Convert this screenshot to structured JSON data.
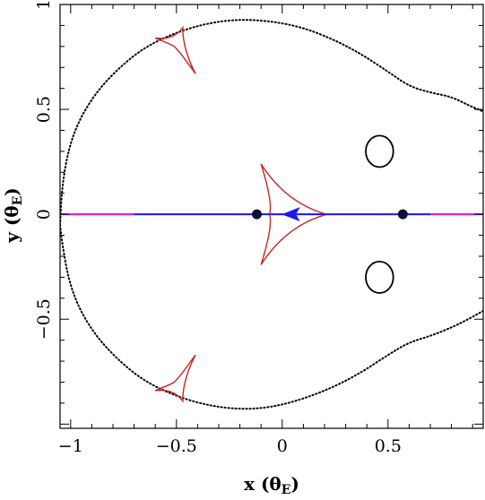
{
  "chart_data": {
    "type": "scatter",
    "xlabel": "x (θ",
    "xlabel_sub": "E",
    "xlabel_end": ")",
    "ylabel": "y (θ",
    "ylabel_sub": "E",
    "ylabel_end": ")",
    "xlim": [
      -1.05,
      0.95
    ],
    "ylim": [
      -1.02,
      1.0
    ],
    "x_ticks": [
      {
        "value": -1,
        "label": "−1"
      },
      {
        "value": -0.5,
        "label": "−0.5"
      },
      {
        "value": 0,
        "label": "0"
      },
      {
        "value": 0.5,
        "label": "0.5"
      }
    ],
    "y_ticks": [
      {
        "value": -0.5,
        "label": "−0.5"
      },
      {
        "value": 0,
        "label": "0"
      },
      {
        "value": 0.5,
        "label": "0.5"
      },
      {
        "value": 1,
        "label": "1"
      }
    ],
    "grid": false,
    "legend": "none",
    "colors": {
      "critical_curve": "#000000",
      "caustic": "#cc2222",
      "source_track": "#1a1aee",
      "source_line": "#dd22dd",
      "lens": "#101030"
    },
    "critical_curves": {
      "outer": [
        [
          -1.05,
          -0.05
        ],
        [
          -1.04,
          0.14
        ],
        [
          -1.01,
          0.31
        ],
        [
          -0.96,
          0.45
        ],
        [
          -0.88,
          0.58
        ],
        [
          -0.78,
          0.69
        ],
        [
          -0.66,
          0.79
        ],
        [
          -0.52,
          0.86
        ],
        [
          -0.36,
          0.91
        ],
        [
          -0.2,
          0.93
        ],
        [
          -0.05,
          0.92
        ],
        [
          0.1,
          0.89
        ],
        [
          0.25,
          0.83
        ],
        [
          0.38,
          0.76
        ],
        [
          0.5,
          0.68
        ],
        [
          0.6,
          0.61
        ],
        [
          0.7,
          0.58
        ],
        [
          0.8,
          0.56
        ],
        [
          0.88,
          0.52
        ],
        [
          0.95,
          0.49
        ]
      ],
      "outer_lower": [
        [
          0.95,
          -0.46
        ],
        [
          0.88,
          -0.5
        ],
        [
          0.8,
          -0.54
        ],
        [
          0.7,
          -0.58
        ],
        [
          0.6,
          -0.61
        ],
        [
          0.5,
          -0.67
        ],
        [
          0.38,
          -0.75
        ],
        [
          0.25,
          -0.82
        ],
        [
          0.1,
          -0.88
        ],
        [
          -0.05,
          -0.92
        ],
        [
          -0.2,
          -0.93
        ],
        [
          -0.36,
          -0.91
        ],
        [
          -0.52,
          -0.86
        ],
        [
          -0.66,
          -0.79
        ],
        [
          -0.78,
          -0.69
        ],
        [
          -0.88,
          -0.58
        ],
        [
          -0.96,
          -0.45
        ],
        [
          -1.01,
          -0.31
        ],
        [
          -1.04,
          -0.14
        ],
        [
          -1.05,
          -0.05
        ]
      ],
      "inner_upper": {
        "cx": 0.46,
        "cy": 0.3,
        "rx": 0.065,
        "ry": 0.075
      },
      "inner_lower": {
        "cx": 0.46,
        "cy": -0.3,
        "rx": 0.065,
        "ry": 0.075
      }
    },
    "caustics": {
      "central": [
        [
          -0.1,
          0.24
        ],
        [
          0.21,
          0.0
        ],
        [
          -0.1,
          -0.24
        ],
        [
          -0.06,
          0.0
        ]
      ],
      "upper": [
        [
          -0.41,
          0.67
        ],
        [
          -0.47,
          0.89
        ],
        [
          -0.6,
          0.84
        ],
        [
          -0.51,
          0.8
        ]
      ],
      "lower": [
        [
          -0.41,
          -0.67
        ],
        [
          -0.47,
          -0.89
        ],
        [
          -0.6,
          -0.84
        ],
        [
          -0.51,
          -0.8
        ]
      ]
    },
    "source_track": {
      "x": [
        -1.05,
        0.95
      ],
      "y": 0.0
    },
    "source_track_blue": {
      "x": [
        -0.7,
        0.7
      ],
      "y": 0.0
    },
    "source_arrow": {
      "x": 0.02,
      "y": 0.0,
      "direction": "left"
    },
    "lenses": [
      {
        "x": -0.12,
        "y": 0.0
      },
      {
        "x": 0.57,
        "y": 0.0
      }
    ]
  }
}
